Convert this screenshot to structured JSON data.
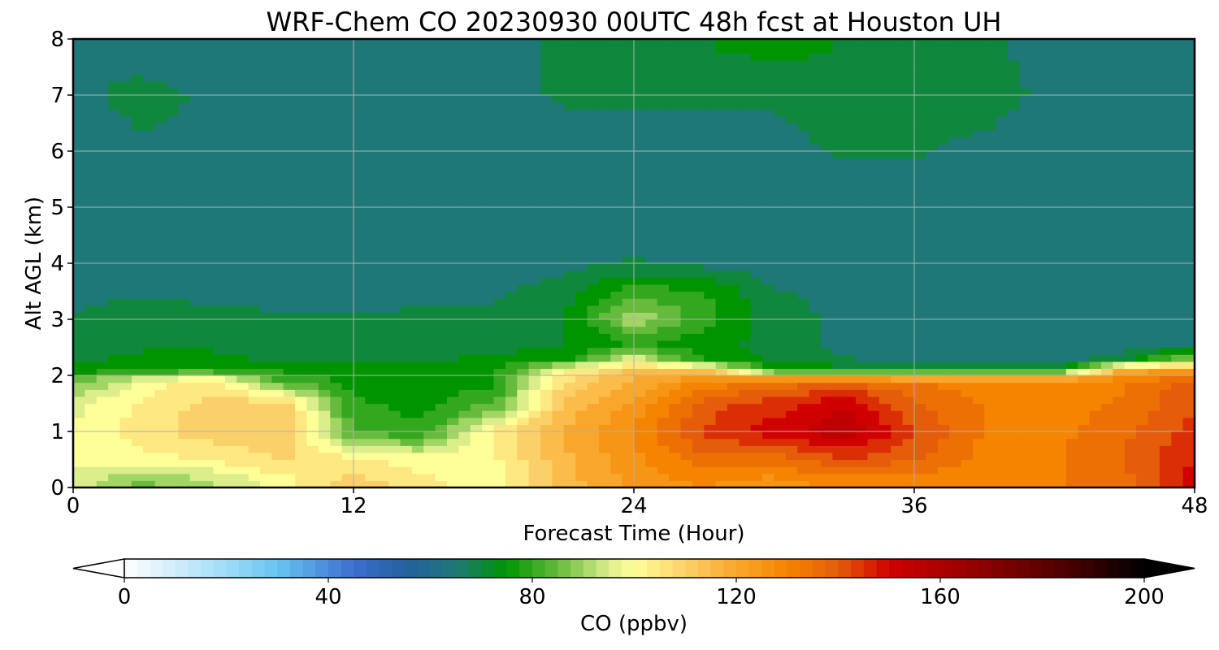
{
  "chart_data": {
    "type": "heatmap",
    "title": "WRF-Chem CO  20230930 00UTC 48h fcst at Houston UH",
    "xlabel": "Forecast Time (Hour)",
    "ylabel": "Alt AGL (km)",
    "xlim": [
      0,
      48
    ],
    "ylim": [
      0,
      8
    ],
    "x_ticks": [
      "0",
      "12",
      "24",
      "36",
      "48"
    ],
    "x_tick_values": [
      0,
      12,
      24,
      36,
      48
    ],
    "y_ticks": [
      "0",
      "1",
      "2",
      "3",
      "4",
      "5",
      "6",
      "7",
      "8"
    ],
    "y_tick_values": [
      0,
      1,
      2,
      3,
      4,
      5,
      6,
      7,
      8
    ],
    "grid": true,
    "x": [
      0,
      3,
      6,
      9,
      12,
      15,
      18,
      21,
      24,
      27,
      30,
      33,
      36,
      39,
      42,
      45,
      48
    ],
    "y": [
      0.1,
      0.5,
      1.0,
      1.5,
      1.9,
      2.1,
      2.3,
      2.6,
      3.0,
      3.5,
      4.0,
      5.0,
      6.0,
      7.0,
      7.8
    ],
    "values": [
      [
        95,
        86,
        92,
        100,
        110,
        104,
        100,
        115,
        124,
        128,
        125,
        130,
        128,
        130,
        132,
        135,
        150
      ],
      [
        98,
        100,
        103,
        108,
        104,
        100,
        101,
        116,
        126,
        136,
        135,
        142,
        138,
        131,
        132,
        138,
        148
      ],
      [
        98,
        106,
        110,
        112,
        82,
        78,
        104,
        118,
        128,
        143,
        150,
        157,
        143,
        132,
        131,
        136,
        145
      ],
      [
        96,
        103,
        110,
        110,
        78,
        76,
        82,
        114,
        124,
        140,
        145,
        152,
        138,
        132,
        130,
        133,
        142
      ],
      [
        84,
        100,
        104,
        82,
        76,
        76,
        76,
        108,
        118,
        128,
        134,
        137,
        132,
        130,
        128,
        132,
        140
      ],
      [
        74,
        78,
        78,
        76,
        75,
        75,
        76,
        100,
        114,
        112,
        76,
        75,
        74,
        74,
        74,
        118,
        122
      ],
      [
        72,
        73,
        73,
        72,
        72,
        72,
        73,
        75,
        96,
        76,
        72,
        68,
        66,
        64,
        65,
        70,
        90
      ],
      [
        70,
        72,
        72,
        71,
        72,
        72,
        71,
        72,
        76,
        75,
        70,
        66,
        64,
        64,
        64,
        64,
        64
      ],
      [
        68,
        70,
        69,
        68,
        68,
        68,
        68,
        72,
        92,
        80,
        70,
        66,
        64,
        64,
        64,
        64,
        64
      ],
      [
        66,
        67,
        66,
        66,
        66,
        67,
        67,
        70,
        80,
        78,
        68,
        66,
        64,
        64,
        64,
        64,
        64
      ],
      [
        66,
        64,
        64,
        64,
        64,
        64,
        64,
        66,
        68,
        66,
        64,
        64,
        64,
        64,
        64,
        64,
        64
      ],
      [
        64,
        66,
        64,
        64,
        64,
        64,
        64,
        64,
        64,
        64,
        64,
        64,
        64,
        64,
        64,
        64,
        64
      ],
      [
        64,
        66,
        66,
        66,
        64,
        64,
        66,
        66,
        66,
        66,
        66,
        68,
        68,
        66,
        64,
        64,
        64
      ],
      [
        66,
        70,
        66,
        66,
        64,
        64,
        66,
        68,
        68,
        68,
        68,
        70,
        70,
        70,
        66,
        64,
        64
      ],
      [
        66,
        64,
        64,
        64,
        64,
        64,
        66,
        68,
        70,
        72,
        74,
        72,
        72,
        68,
        66,
        64,
        64
      ]
    ],
    "colorbar": {
      "label": "CO  (ppbv)",
      "min": 0,
      "max": 200,
      "extend": "both",
      "ticks": [
        "0",
        "40",
        "80",
        "120",
        "160",
        "200"
      ],
      "tick_values": [
        0,
        40,
        80,
        120,
        160,
        200
      ],
      "color_stops": [
        {
          "v": 0,
          "c": "#ffffff"
        },
        {
          "v": 20,
          "c": "#9fdcf8"
        },
        {
          "v": 30,
          "c": "#66c4f0"
        },
        {
          "v": 45,
          "c": "#3d6fcf"
        },
        {
          "v": 55,
          "c": "#23609e"
        },
        {
          "v": 65,
          "c": "#1e7878"
        },
        {
          "v": 75,
          "c": "#009500"
        },
        {
          "v": 85,
          "c": "#66bb3c"
        },
        {
          "v": 95,
          "c": "#dcee8c"
        },
        {
          "v": 100,
          "c": "#ffff99"
        },
        {
          "v": 110,
          "c": "#fcd068"
        },
        {
          "v": 120,
          "c": "#f9a72c"
        },
        {
          "v": 130,
          "c": "#f58400"
        },
        {
          "v": 140,
          "c": "#e55c0a"
        },
        {
          "v": 150,
          "c": "#d00000"
        },
        {
          "v": 165,
          "c": "#9a0000"
        },
        {
          "v": 185,
          "c": "#4a0000"
        },
        {
          "v": 200,
          "c": "#000000"
        }
      ]
    }
  }
}
